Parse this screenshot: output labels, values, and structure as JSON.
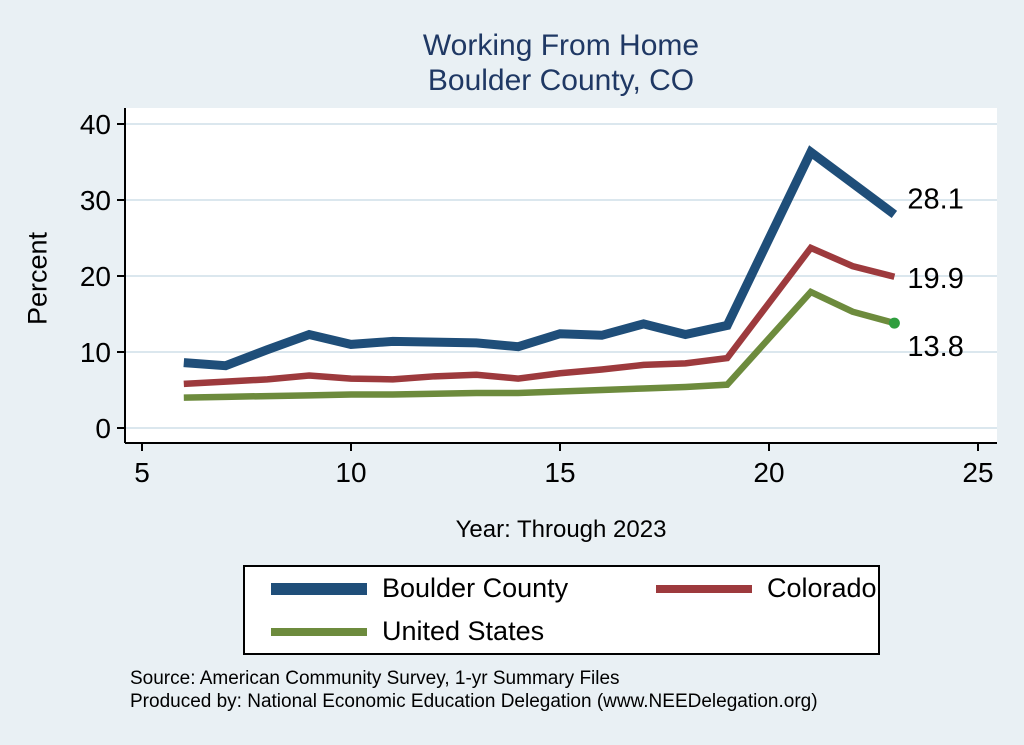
{
  "title": {
    "line1": "Working From Home",
    "line2": "Boulder County, CO"
  },
  "axes": {
    "y_label": "Percent",
    "x_label": "Year: Through 2023",
    "y_ticks": [
      0,
      10,
      20,
      30,
      40
    ],
    "x_ticks": [
      5,
      10,
      15,
      20,
      25
    ]
  },
  "colors": {
    "background": "#e9f0f4",
    "plot_background": "#ffffff",
    "gridline": "#dbe7ee",
    "axis": "#000000",
    "title_text": "#1f3864",
    "boulder_county": "#1f4e79",
    "colorado": "#9d3a3d",
    "united_states": "#6d8b3d",
    "end_marker": "#2f9e3e"
  },
  "chart_data": {
    "type": "line",
    "title": "Working From Home — Boulder County, CO",
    "xlabel": "Year: Through 2023",
    "ylabel": "Percent",
    "xlim": [
      5,
      25
    ],
    "ylim": [
      0,
      40
    ],
    "grid": "horizontal gridlines at y ticks",
    "legend_position": "bottom",
    "x": [
      6,
      7,
      8,
      9,
      10,
      11,
      12,
      13,
      14,
      15,
      16,
      17,
      18,
      19,
      21,
      22,
      23
    ],
    "series": [
      {
        "name": "Boulder County",
        "color": "#1f4e79",
        "width": 9,
        "values": [
          8.6,
          8.2,
          10.3,
          12.3,
          11.0,
          11.4,
          11.3,
          11.2,
          10.7,
          12.4,
          12.2,
          13.7,
          12.3,
          13.5,
          36.3,
          32.2,
          28.1
        ],
        "end_label": "28.1"
      },
      {
        "name": "Colorado",
        "color": "#9d3a3d",
        "width": 6.5,
        "values": [
          5.8,
          6.1,
          6.4,
          6.9,
          6.5,
          6.4,
          6.8,
          7.0,
          6.5,
          7.2,
          7.7,
          8.3,
          8.5,
          9.2,
          23.7,
          21.3,
          19.9
        ],
        "end_label": "19.9"
      },
      {
        "name": "United States",
        "color": "#6d8b3d",
        "width": 6.5,
        "values": [
          4.0,
          4.1,
          4.2,
          4.3,
          4.4,
          4.4,
          4.5,
          4.6,
          4.6,
          4.8,
          5.0,
          5.2,
          5.4,
          5.7,
          17.9,
          15.3,
          13.8
        ],
        "end_label": "13.8",
        "end_marker_color": "#2f9e3e"
      }
    ]
  },
  "legend": {
    "items": [
      {
        "label": "Boulder County",
        "color": "#1f4e79",
        "swatch_height": 12
      },
      {
        "label": "Colorado",
        "color": "#9d3a3d",
        "swatch_height": 8
      },
      {
        "label": "United States",
        "color": "#6d8b3d",
        "swatch_height": 8
      }
    ]
  },
  "footer": {
    "line1": "Source: American Community Survey, 1-yr Summary Files",
    "line2": "Produced by: National Economic Education Delegation (www.NEEDelegation.org)"
  }
}
